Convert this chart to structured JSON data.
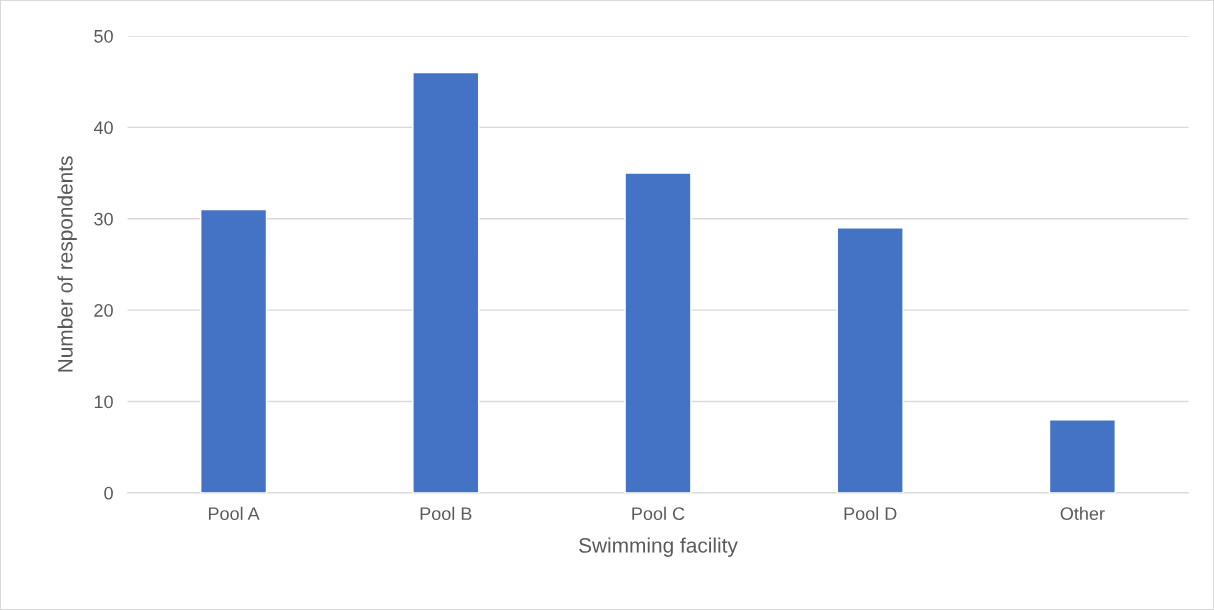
{
  "chart_data": {
    "type": "bar",
    "xlabel": "Swimming facility",
    "ylabel": "Number of respondents",
    "categories": [
      "Pool A",
      "Pool B",
      "Pool C",
      "Pool D",
      "Other"
    ],
    "values": [
      31,
      46,
      35,
      29,
      8
    ],
    "color": "#4472c4",
    "ylim": [
      0,
      50
    ],
    "yticks": [
      0,
      10,
      20,
      30,
      40,
      50
    ],
    "grid": "y",
    "legend": false
  }
}
